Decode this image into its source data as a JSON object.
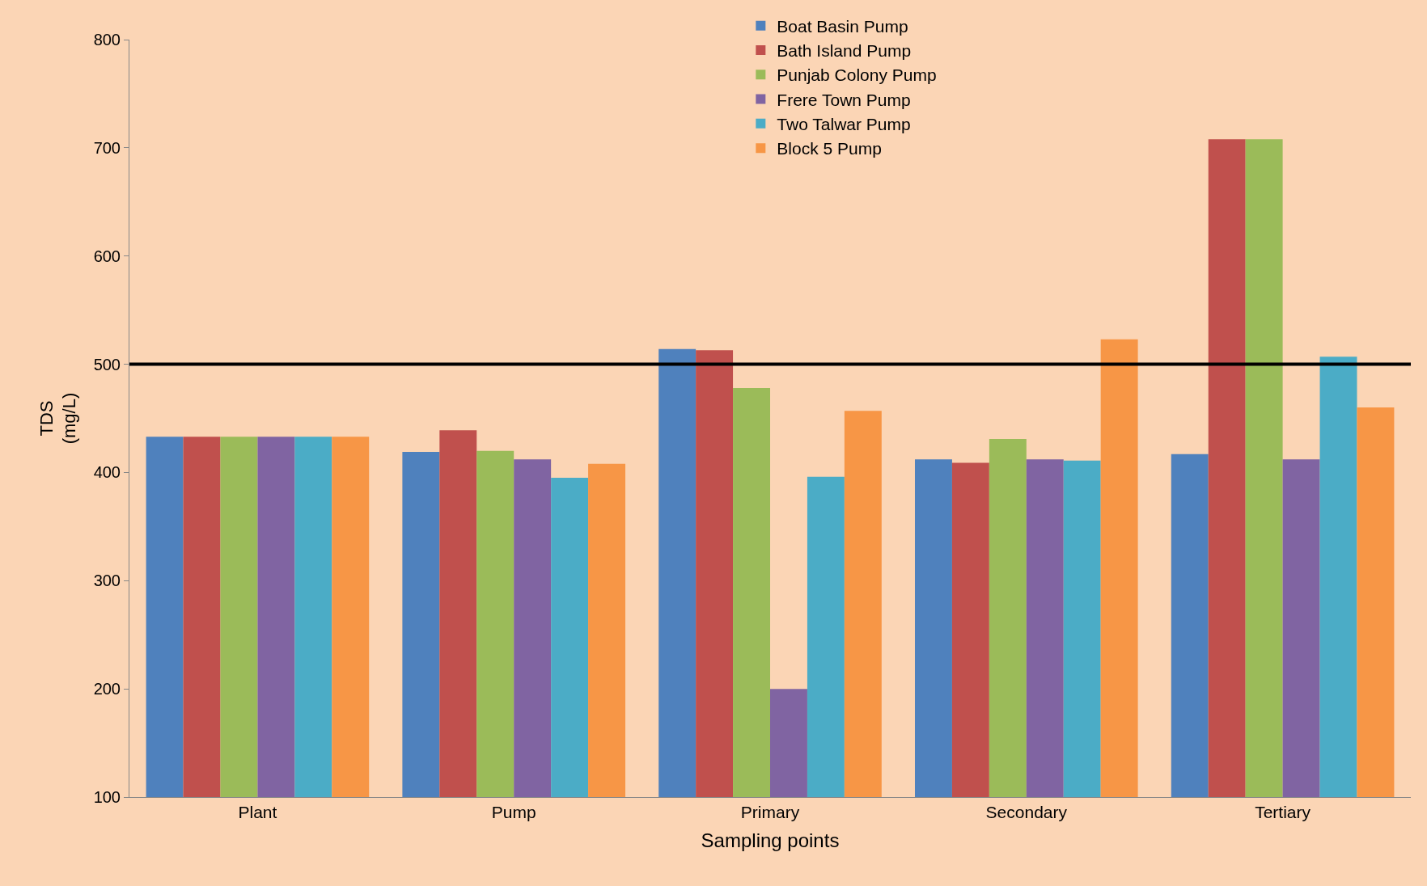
{
  "chart_data": {
    "type": "bar",
    "xlabel": "Sampling points",
    "ylabel": "TDS\n(mg/L)",
    "categories": [
      "Plant",
      "Pump",
      "Primary",
      "Secondary",
      "Tertiary"
    ],
    "series": [
      {
        "name": "Boat Basin Pump",
        "color": "#4f81bd",
        "values": [
          433,
          419,
          514,
          412,
          417
        ]
      },
      {
        "name": "Bath Island Pump",
        "color": "#c0504d",
        "values": [
          433,
          439,
          513,
          409,
          708
        ]
      },
      {
        "name": "Punjab Colony Pump",
        "color": "#9bbb59",
        "values": [
          433,
          420,
          478,
          431,
          708
        ]
      },
      {
        "name": "Frere Town Pump",
        "color": "#8064a2",
        "values": [
          433,
          412,
          200,
          412,
          412
        ]
      },
      {
        "name": "Two Talwar Pump",
        "color": "#4bacc6",
        "values": [
          433,
          395,
          396,
          411,
          507
        ]
      },
      {
        "name": "Block 5 Pump",
        "color": "#f79646",
        "values": [
          433,
          408,
          457,
          523,
          460
        ]
      }
    ],
    "ylim": [
      100,
      800
    ],
    "yticks": [
      100,
      200,
      300,
      400,
      500,
      600,
      700,
      800
    ],
    "ref_lines": [
      {
        "axis": "y",
        "value": 500,
        "color": "#000000",
        "line_style": "solid"
      }
    ],
    "grid": false,
    "legend": "top"
  }
}
